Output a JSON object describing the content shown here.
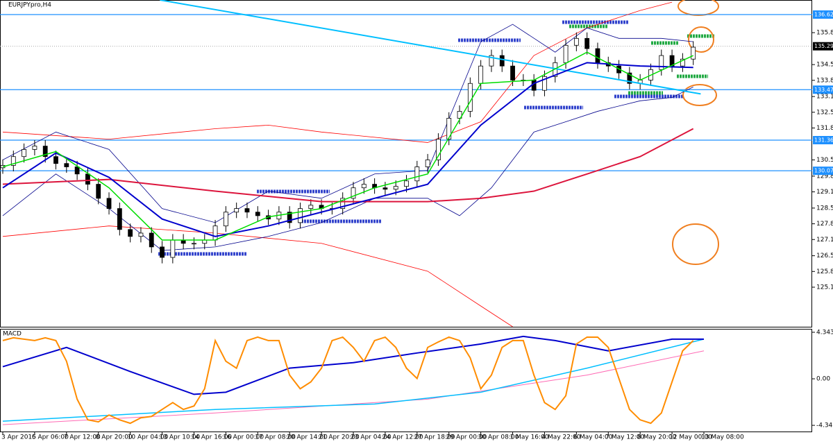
{
  "chart_data": {
    "type": "candlestick",
    "title": "EURJPYpro,H4",
    "xlim": [
      0,
      66
    ],
    "xticks": [
      {
        "value": 0,
        "label": "3 Apr 2015"
      },
      {
        "value": 3,
        "label": "6 Apr 06:00"
      },
      {
        "value": 6,
        "label": "7 Apr 12:00"
      },
      {
        "value": 9,
        "label": "8 Apr 20:00"
      },
      {
        "value": 12,
        "label": "10 Apr 04:00"
      },
      {
        "value": 15,
        "label": "13 Apr 10:00"
      },
      {
        "value": 18,
        "label": "14 Apr 16:00"
      },
      {
        "value": 21,
        "label": "16 Apr 00:00"
      },
      {
        "value": 24,
        "label": "17 Apr 08:00"
      },
      {
        "value": 27,
        "label": "20 Apr 14:00"
      },
      {
        "value": 30,
        "label": "21 Apr 20:00"
      },
      {
        "value": 33,
        "label": "23 Apr 04:00"
      },
      {
        "value": 36,
        "label": "24 Apr 12:00"
      },
      {
        "value": 39,
        "label": "27 Apr 18:00"
      },
      {
        "value": 42,
        "label": "29 Apr 00:00"
      },
      {
        "value": 45,
        "label": "30 Apr 08:00"
      },
      {
        "value": 48,
        "label": "1 May 16:00"
      },
      {
        "value": 51,
        "label": "4 May 22:00"
      },
      {
        "value": 54,
        "label": "6 May 04:00"
      },
      {
        "value": 57,
        "label": "7 May 12:00"
      },
      {
        "value": 60,
        "label": "8 May 20:00"
      },
      {
        "value": 63,
        "label": "12 May 00:00"
      },
      {
        "value": 66,
        "label": "13 May 08:00"
      }
    ],
    "ylim": [
      123.53,
      137.24
    ],
    "yticks": [
      {
        "value": 135.87,
        "label": "135.870"
      },
      134.53,
      133.87,
      133.19,
      132.53,
      131.87,
      130.53,
      129.85,
      129.19,
      128.51,
      127.85,
      127.19,
      126.51,
      125.85,
      125.19
    ],
    "up_color": "#ffffff",
    "down_color": "#000000",
    "open": [
      130.2,
      130.3,
      130.67,
      130.97,
      131.11,
      130.67,
      130.38,
      130.24,
      129.94,
      129.51,
      128.92,
      128.49,
      127.61,
      127.32,
      127.46,
      126.88,
      126.44,
      127.17,
      127.03,
      127.03,
      127.17,
      127.76,
      128.34,
      128.49,
      128.34,
      128.19,
      128.05,
      128.34,
      127.9,
      128.49,
      128.63,
      128.49,
      128.49,
      128.92,
      129.36,
      129.51,
      129.36,
      129.3,
      129.42,
      129.65,
      130.24,
      130.53,
      131.4,
      132.28,
      132.57,
      133.74,
      134.47,
      134.91,
      134.47,
      133.88,
      133.88,
      133.45,
      134.03,
      134.61,
      135.34,
      135.63,
      135.2,
      134.61,
      134.47,
      134.18,
      133.74,
      133.88,
      134.32,
      134.91,
      134.47,
      134.76
    ],
    "high": [
      130.55,
      130.92,
      131.22,
      131.36,
      131.36,
      130.92,
      130.63,
      130.49,
      130.19,
      129.76,
      129.17,
      128.74,
      127.86,
      127.71,
      127.71,
      127.13,
      127.42,
      127.42,
      127.28,
      127.42,
      128.01,
      128.59,
      128.74,
      128.74,
      128.59,
      128.44,
      128.59,
      128.59,
      128.74,
      128.88,
      128.88,
      128.74,
      129.17,
      129.61,
      129.76,
      129.76,
      129.61,
      129.67,
      129.9,
      130.49,
      130.78,
      131.65,
      132.53,
      132.82,
      133.99,
      134.72,
      135.16,
      135.16,
      134.72,
      134.13,
      134.13,
      134.28,
      134.86,
      135.59,
      135.88,
      135.88,
      135.45,
      134.86,
      134.72,
      134.43,
      134.13,
      134.57,
      135.16,
      135.16,
      135.01,
      135.51
    ],
    "low": [
      129.95,
      130.05,
      130.42,
      130.72,
      130.42,
      130.13,
      129.99,
      129.69,
      129.26,
      128.67,
      128.24,
      127.36,
      127.07,
      127.07,
      126.63,
      126.19,
      126.19,
      126.78,
      126.78,
      126.78,
      126.92,
      127.51,
      128.09,
      128.09,
      127.94,
      127.8,
      127.8,
      127.65,
      127.65,
      128.24,
      128.24,
      128.24,
      128.24,
      128.67,
      129.11,
      129.11,
      129.05,
      129.05,
      129.17,
      129.4,
      129.99,
      130.28,
      131.15,
      132.03,
      132.32,
      133.49,
      134.22,
      134.22,
      133.63,
      133.63,
      133.2,
      133.2,
      133.78,
      134.36,
      135.09,
      134.95,
      134.36,
      134.22,
      133.93,
      133.49,
      133.49,
      133.63,
      134.07,
      134.22,
      134.22,
      134.51
    ],
    "close": [
      130.3,
      130.67,
      130.97,
      131.11,
      130.67,
      130.38,
      130.24,
      129.94,
      129.51,
      128.92,
      128.49,
      127.61,
      127.32,
      127.46,
      126.88,
      126.44,
      127.17,
      127.03,
      127.03,
      127.17,
      127.76,
      128.34,
      128.49,
      128.34,
      128.19,
      128.05,
      128.34,
      127.9,
      128.49,
      128.63,
      128.49,
      128.49,
      128.92,
      129.36,
      129.51,
      129.36,
      129.3,
      129.42,
      129.65,
      130.24,
      130.53,
      131.4,
      132.28,
      132.57,
      133.74,
      134.47,
      134.91,
      134.47,
      133.88,
      133.88,
      133.45,
      134.03,
      134.61,
      135.34,
      135.63,
      135.2,
      134.61,
      134.47,
      134.18,
      133.74,
      133.88,
      134.32,
      134.91,
      134.47,
      134.76,
      135.26
    ],
    "lines": [
      {
        "color": "#ff0000",
        "width": 0.8,
        "x": [
          0,
          10,
          20,
          25,
          30,
          40,
          45,
          50,
          55,
          60,
          63
        ],
        "values": [
          131.7,
          131.4,
          131.84,
          131.99,
          131.7,
          131.26,
          132.13,
          134.91,
          136.07,
          136.8,
          137.15
        ]
      },
      {
        "color": "#ff0000",
        "width": 0.8,
        "x": [
          0,
          10,
          20,
          30,
          40,
          45,
          48
        ],
        "values": [
          127.32,
          127.76,
          127.46,
          127.03,
          125.86,
          124.4,
          123.53
        ]
      },
      {
        "color": "#00008b",
        "width": 0.8,
        "x": [
          0,
          5,
          10,
          15,
          20,
          25,
          30,
          35,
          40,
          45,
          48,
          52,
          55,
          58,
          62,
          65
        ],
        "values": [
          130.53,
          131.7,
          130.97,
          128.49,
          127.9,
          129.22,
          128.92,
          129.94,
          130.09,
          135.49,
          136.22,
          135.05,
          136.07,
          135.63,
          135.63,
          135.49
        ]
      },
      {
        "color": "#00008b",
        "width": 0.8,
        "x": [
          0,
          5,
          10,
          15,
          20,
          25,
          30,
          35,
          40,
          43,
          46,
          50,
          53,
          56,
          60,
          63,
          65
        ],
        "values": [
          128.19,
          129.94,
          128.49,
          126.73,
          126.88,
          127.32,
          127.9,
          128.92,
          128.92,
          128.19,
          129.36,
          131.7,
          132.13,
          132.57,
          133.01,
          133.15,
          133.59
        ]
      },
      {
        "color": "#00bfff",
        "width": 2,
        "x": [
          14.8,
          65.7
        ],
        "values": [
          137.24,
          133.3
        ]
      },
      {
        "color": "#dc143c",
        "width": 2,
        "x": [
          0,
          10,
          20,
          30,
          40,
          45,
          50,
          55,
          60,
          65
        ],
        "values": [
          129.51,
          129.71,
          129.22,
          128.78,
          128.78,
          128.92,
          129.22,
          129.94,
          130.67,
          131.84
        ]
      },
      {
        "color": "#0000cd",
        "width": 2,
        "x": [
          0,
          5,
          10,
          15,
          20,
          25,
          30,
          35,
          40,
          45,
          50,
          55,
          60,
          65
        ],
        "values": [
          129.36,
          130.82,
          129.8,
          128.05,
          127.32,
          127.76,
          128.34,
          128.92,
          129.51,
          131.99,
          133.74,
          134.61,
          134.47,
          134.41
        ]
      },
      {
        "color": "#00dd00",
        "width": 1.5,
        "x": [
          0,
          5,
          10,
          15,
          20,
          25,
          30,
          35,
          40,
          45,
          50,
          55,
          60,
          65
        ],
        "values": [
          130.24,
          130.88,
          129.36,
          127.17,
          127.17,
          128.14,
          128.49,
          129.36,
          129.94,
          133.74,
          133.88,
          135.05,
          133.88,
          134.91
        ]
      }
    ],
    "level_color": "#1e90ff",
    "levels": [
      136.629,
      133.477,
      {
        "value": 131.36,
        "label": "131.360"
      },
      130.075
    ],
    "last_price": 135.299,
    "macd": {
      "label": "MACD",
      "ylim": [
        -4.92,
        4.6
      ],
      "yticks": [
        4.3438,
        {
          "value": 0,
          "label": "0.00"
        },
        -4.3438
      ],
      "lines": [
        {
          "color": "#ff69b4",
          "width": 1,
          "x": [
            0,
            20,
            40,
            55,
            66
          ],
          "values": [
            -4.28,
            -3.19,
            -1.9,
            0.35,
            2.61
          ]
        },
        {
          "color": "#00bfff",
          "width": 1.5,
          "x": [
            0,
            20,
            35,
            45,
            55,
            66
          ],
          "values": [
            -3.96,
            -2.86,
            -2.35,
            -1.25,
            1.0,
            3.7
          ]
        },
        {
          "color": "#0000cd",
          "width": 2,
          "x": [
            0,
            6,
            12,
            18,
            21,
            27,
            33,
            39,
            45,
            49,
            52,
            57,
            63,
            66
          ],
          "values": [
            1.13,
            2.93,
            0.68,
            -1.45,
            -1.25,
            1.0,
            1.51,
            2.41,
            3.25,
            3.96,
            3.57,
            2.61,
            3.7,
            3.7
          ]
        },
        {
          "color": "#ff8c00",
          "width": 2,
          "x": [
            0,
            1,
            2,
            3,
            4,
            5,
            6,
            7,
            8,
            9,
            10,
            11,
            12,
            13,
            14,
            15,
            16,
            17,
            18,
            19,
            20,
            21,
            22,
            23,
            24,
            25,
            26,
            27,
            28,
            29,
            30,
            31,
            32,
            33,
            34,
            35,
            36,
            37,
            38,
            39,
            40,
            41,
            42,
            43,
            44,
            45,
            46,
            47,
            48,
            49,
            50,
            51,
            52,
            53,
            54,
            55,
            56,
            57,
            58,
            59,
            60,
            61,
            62,
            63,
            64,
            65
          ],
          "values": [
            3.57,
            3.83,
            3.7,
            3.57,
            3.83,
            3.57,
            1.64,
            -1.9,
            -3.83,
            -4.02,
            -3.38,
            -3.83,
            -4.15,
            -3.64,
            -3.51,
            -2.86,
            -2.22,
            -2.86,
            -2.54,
            -0.93,
            3.57,
            1.64,
            0.99,
            3.57,
            3.89,
            3.57,
            3.57,
            0.35,
            -0.93,
            -0.29,
            0.99,
            3.57,
            3.89,
            2.93,
            1.64,
            3.57,
            3.89,
            2.93,
            0.99,
            0.03,
            2.93,
            3.44,
            3.89,
            3.57,
            1.96,
            -0.93,
            0.35,
            2.93,
            3.57,
            3.57,
            0.35,
            -2.22,
            -2.86,
            -1.58,
            3.25,
            3.89,
            3.89,
            2.93,
            0.03,
            -2.86,
            -3.83,
            -4.15,
            -3.19,
            -0.29,
            2.61,
            3.57
          ]
        }
      ]
    }
  }
}
